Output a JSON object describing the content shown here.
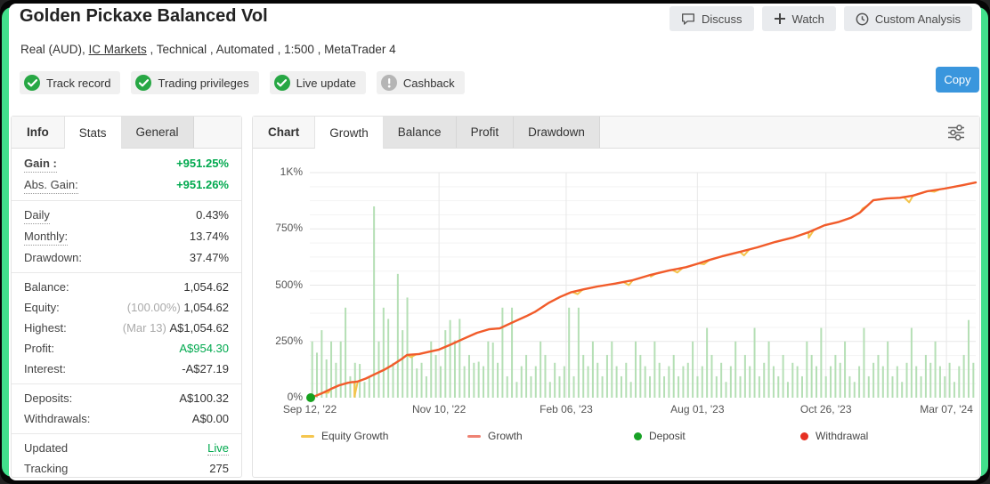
{
  "header": {
    "title": "Golden Pickaxe Balanced Vol",
    "subtitle_segments": [
      {
        "text": "Real (AUD), ",
        "link": false
      },
      {
        "text": "IC Markets",
        "link": true
      },
      {
        "text": " , Technical , Automated , 1:500 , MetaTrader 4",
        "link": false
      }
    ],
    "buttons": [
      {
        "label": "Discuss",
        "icon": "discuss-icon"
      },
      {
        "label": "Watch",
        "icon": "plus-icon"
      },
      {
        "label": "Custom Analysis",
        "icon": "clock-icon"
      }
    ],
    "badges": [
      {
        "label": "Track record",
        "status": "ok"
      },
      {
        "label": "Trading privileges",
        "status": "ok"
      },
      {
        "label": "Live update",
        "status": "ok"
      },
      {
        "label": "Cashback",
        "status": "info"
      }
    ],
    "copy_label": "Copy"
  },
  "sidebar": {
    "strip_label": "Info",
    "tabs": [
      {
        "label": "Stats",
        "active": true
      },
      {
        "label": "General",
        "active": false
      }
    ],
    "rows": [
      {
        "label": "Gain :",
        "value": "+951.25%",
        "label_dotted": true,
        "label_bold": true,
        "value_green": true,
        "value_bold": true
      },
      {
        "label": "Abs. Gain:",
        "value": "+951.26%",
        "label_dotted": true,
        "value_green": true,
        "value_bold": true
      },
      {
        "label": "Daily",
        "value": "0.43%",
        "label_dotted": true,
        "sep_before": true
      },
      {
        "label": "Monthly:",
        "value": "13.74%",
        "label_dotted": true
      },
      {
        "label": "Drawdown:",
        "value": "37.47%"
      },
      {
        "label": "Balance:",
        "value": "1,054.62",
        "sep_before": true
      },
      {
        "label": "Equity:",
        "value": "1,054.62",
        "value_note": "(100.00%)"
      },
      {
        "label": "Highest:",
        "value": "A$1,054.62",
        "value_note": "(Mar 13)"
      },
      {
        "label": "Profit:",
        "value": "A$954.30",
        "value_green": true
      },
      {
        "label": "Interest:",
        "value": "-A$27.19"
      },
      {
        "label": "Deposits:",
        "value": "A$100.32",
        "sep_before": true
      },
      {
        "label": "Withdrawals:",
        "value": "A$0.00"
      },
      {
        "label": "Updated",
        "value": "Live",
        "value_green": true,
        "value_dotted": true,
        "sep_before": true
      },
      {
        "label": "Tracking",
        "value": "275"
      }
    ]
  },
  "chart_panel": {
    "strip_label": "Chart",
    "tabs": [
      {
        "label": "Growth",
        "active": true
      },
      {
        "label": "Balance",
        "active": false
      },
      {
        "label": "Profit",
        "active": false
      },
      {
        "label": "Drawdown",
        "active": false
      }
    ]
  },
  "chart_data": {
    "type": "line",
    "title": "Growth chart",
    "ylim": [
      0,
      1000
    ],
    "grid": true,
    "minor_grid_step_pct": 62.5,
    "yticks": [
      {
        "v": 0,
        "label": "0%"
      },
      {
        "v": 250,
        "label": "250%"
      },
      {
        "v": 500,
        "label": "500%"
      },
      {
        "v": 750,
        "label": "750%"
      },
      {
        "v": 1000,
        "label": "1K%"
      }
    ],
    "xticks": [
      {
        "f": 0.0,
        "label": "Sep 12, '22"
      },
      {
        "f": 0.194,
        "label": "Nov 10, '22"
      },
      {
        "f": 0.385,
        "label": "Feb 06, '23"
      },
      {
        "f": 0.582,
        "label": "Aug 01, '23"
      },
      {
        "f": 0.775,
        "label": "Oct 26, '23"
      },
      {
        "f": 0.956,
        "label": "Mar 07, '24"
      }
    ],
    "series": [
      {
        "name": "Growth",
        "color": "#f15b2b",
        "points": [
          [
            0.0,
            0
          ],
          [
            0.007,
            6
          ],
          [
            0.017,
            18
          ],
          [
            0.031,
            38
          ],
          [
            0.044,
            55
          ],
          [
            0.057,
            66
          ],
          [
            0.063,
            69
          ],
          [
            0.067,
            70
          ],
          [
            0.072,
            72
          ],
          [
            0.084,
            85
          ],
          [
            0.098,
            105
          ],
          [
            0.111,
            123
          ],
          [
            0.124,
            145
          ],
          [
            0.138,
            172
          ],
          [
            0.146,
            190
          ],
          [
            0.164,
            194
          ],
          [
            0.178,
            203
          ],
          [
            0.194,
            214
          ],
          [
            0.211,
            235
          ],
          [
            0.231,
            262
          ],
          [
            0.251,
            288
          ],
          [
            0.269,
            304
          ],
          [
            0.285,
            308
          ],
          [
            0.305,
            335
          ],
          [
            0.325,
            362
          ],
          [
            0.338,
            381
          ],
          [
            0.358,
            420
          ],
          [
            0.376,
            448
          ],
          [
            0.392,
            468
          ],
          [
            0.412,
            482
          ],
          [
            0.432,
            494
          ],
          [
            0.459,
            507
          ],
          [
            0.485,
            522
          ],
          [
            0.512,
            546
          ],
          [
            0.539,
            565
          ],
          [
            0.565,
            580
          ],
          [
            0.582,
            595
          ],
          [
            0.6,
            612
          ],
          [
            0.619,
            628
          ],
          [
            0.646,
            648
          ],
          [
            0.672,
            668
          ],
          [
            0.699,
            692
          ],
          [
            0.726,
            712
          ],
          [
            0.749,
            735
          ],
          [
            0.773,
            766
          ],
          [
            0.793,
            780
          ],
          [
            0.813,
            800
          ],
          [
            0.826,
            822
          ],
          [
            0.846,
            877
          ],
          [
            0.866,
            885
          ],
          [
            0.886,
            888
          ],
          [
            0.906,
            898
          ],
          [
            0.927,
            917
          ],
          [
            0.953,
            929
          ],
          [
            0.98,
            944
          ],
          [
            1.0,
            956
          ]
        ]
      },
      {
        "name": "Equity Growth",
        "color": "#f3c44c",
        "follows": "Growth",
        "dip_points": [
          [
            0.028,
            22
          ],
          [
            0.067,
            4
          ],
          [
            0.152,
            180
          ],
          [
            0.402,
            460
          ],
          [
            0.479,
            500
          ],
          [
            0.512,
            538
          ],
          [
            0.552,
            556
          ],
          [
            0.592,
            593
          ],
          [
            0.652,
            632
          ],
          [
            0.749,
            710
          ],
          [
            0.83,
            840
          ],
          [
            0.9,
            868
          ],
          [
            0.938,
            915
          ]
        ]
      }
    ],
    "bars": {
      "color": "#b5dfb5",
      "values": [
        250,
        200,
        300,
        170,
        250,
        155,
        250,
        400,
        95,
        155,
        150,
        70,
        95,
        850,
        250,
        400,
        350,
        155,
        550,
        300,
        445,
        190,
        130,
        155,
        95,
        250,
        190,
        140,
        300,
        345,
        255,
        350,
        140,
        190,
        155,
        160,
        140,
        250,
        245,
        155,
        400,
        95,
        400,
        70,
        140,
        190,
        95,
        140,
        250,
        190,
        70,
        155,
        95,
        140,
        400,
        95,
        400,
        190,
        140,
        250,
        155,
        95,
        190,
        250,
        140,
        95,
        155,
        70,
        250,
        190,
        140,
        95,
        250,
        155,
        95,
        140,
        190,
        95,
        140,
        155,
        250,
        95,
        140,
        310,
        190,
        95,
        155,
        70,
        140,
        250,
        95,
        190,
        140,
        310,
        95,
        155,
        250,
        140,
        95,
        190,
        70,
        155,
        140,
        95,
        250,
        190,
        140,
        310,
        95,
        140,
        190,
        155,
        250,
        95,
        70,
        140,
        310,
        95,
        155,
        190,
        140,
        250,
        95,
        140,
        70,
        155,
        310,
        140,
        95,
        190,
        155,
        250,
        140,
        95,
        155,
        70,
        140,
        190,
        345,
        155
      ]
    },
    "markers": [
      {
        "type": "deposit",
        "f": 0.0,
        "v": 0,
        "color": "#16a11e"
      }
    ],
    "legend": [
      {
        "label": "Equity Growth",
        "marker": "line",
        "color": "#f5c64f"
      },
      {
        "label": "Growth",
        "marker": "line",
        "color": "#ee8273"
      },
      {
        "label": "Deposit",
        "marker": "dot",
        "color": "#18a126"
      },
      {
        "label": "Withdrawal",
        "marker": "dot",
        "color": "#e63022"
      }
    ]
  },
  "colors": {
    "positive_green": "#00a94e",
    "copy_blue": "#3a96dd",
    "badge_ok_green": "#27a744",
    "badge_info_gray": "#b5b5b5",
    "frame_green": "#42e08c",
    "grid_major": "#e7e7e7",
    "grid_minor": "#f3f3f3"
  }
}
